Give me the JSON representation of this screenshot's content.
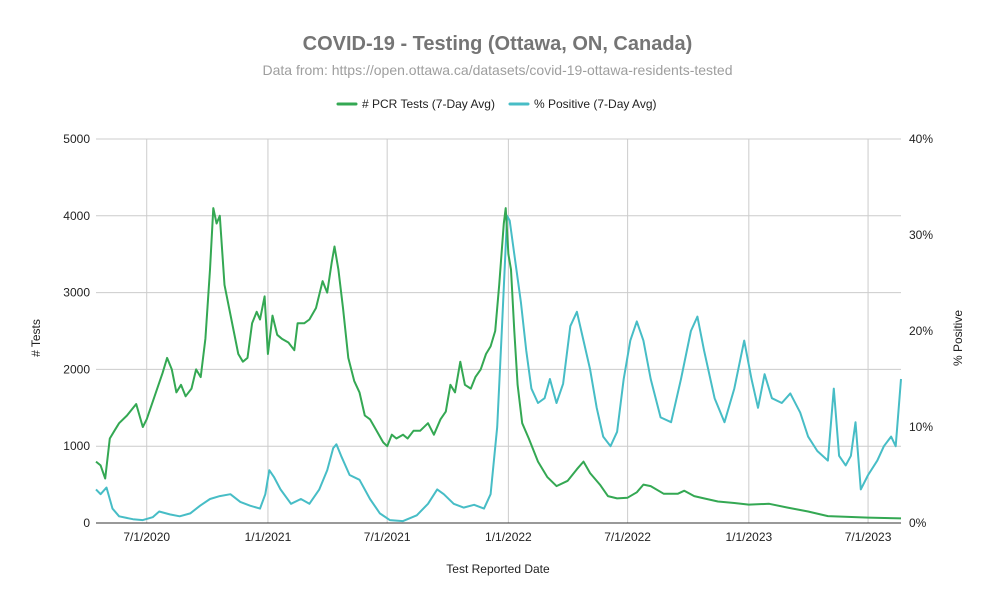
{
  "chart_data": {
    "type": "line",
    "title": "COVID-19 -  Testing (Ottawa, ON, Canada)",
    "subtitle": "Data from: https://open.ottawa.ca/datasets/covid-19-ottawa-residents-tested",
    "xlabel": "Test Reported Date",
    "ylabel_left": "# Tests",
    "ylabel_right": "% Positive",
    "x_ticks": [
      "7/1/2020",
      "1/1/2021",
      "7/1/2021",
      "1/1/2022",
      "7/1/2022",
      "1/1/2023",
      "7/1/2023"
    ],
    "xlim": [
      "2020-04-15",
      "2023-08-20"
    ],
    "left_axis": {
      "ticks": [
        "0",
        "1000",
        "2000",
        "3000",
        "4000",
        "5000"
      ],
      "ylim": [
        0,
        5000
      ]
    },
    "right_axis": {
      "ticks": [
        "0%",
        "10%",
        "20%",
        "30%",
        "40%"
      ],
      "ylim": [
        0,
        40
      ]
    },
    "grid": true,
    "legend_position": "top",
    "series": [
      {
        "name": "# PCR Tests (7-Day Avg)",
        "axis": "left",
        "color": "#34a853",
        "points": [
          [
            "2020-04-15",
            800
          ],
          [
            "2020-04-22",
            750
          ],
          [
            "2020-04-29",
            580
          ],
          [
            "2020-05-06",
            1100
          ],
          [
            "2020-05-13",
            1200
          ],
          [
            "2020-05-20",
            1300
          ],
          [
            "2020-06-01",
            1400
          ],
          [
            "2020-06-15",
            1550
          ],
          [
            "2020-06-25",
            1250
          ],
          [
            "2020-07-01",
            1350
          ],
          [
            "2020-07-15",
            1700
          ],
          [
            "2020-07-25",
            1950
          ],
          [
            "2020-08-01",
            2150
          ],
          [
            "2020-08-08",
            2000
          ],
          [
            "2020-08-15",
            1700
          ],
          [
            "2020-08-22",
            1800
          ],
          [
            "2020-08-29",
            1650
          ],
          [
            "2020-09-07",
            1750
          ],
          [
            "2020-09-14",
            2000
          ],
          [
            "2020-09-21",
            1900
          ],
          [
            "2020-09-28",
            2400
          ],
          [
            "2020-10-05",
            3300
          ],
          [
            "2020-10-10",
            4100
          ],
          [
            "2020-10-15",
            3900
          ],
          [
            "2020-10-20",
            4000
          ],
          [
            "2020-10-27",
            3100
          ],
          [
            "2020-11-03",
            2800
          ],
          [
            "2020-11-10",
            2500
          ],
          [
            "2020-11-17",
            2200
          ],
          [
            "2020-11-24",
            2100
          ],
          [
            "2020-12-01",
            2150
          ],
          [
            "2020-12-08",
            2600
          ],
          [
            "2020-12-15",
            2750
          ],
          [
            "2020-12-20",
            2650
          ],
          [
            "2020-12-27",
            2950
          ],
          [
            "2021-01-01",
            2200
          ],
          [
            "2021-01-08",
            2700
          ],
          [
            "2021-01-15",
            2450
          ],
          [
            "2021-01-22",
            2400
          ],
          [
            "2021-02-01",
            2350
          ],
          [
            "2021-02-10",
            2250
          ],
          [
            "2021-02-15",
            2600
          ],
          [
            "2021-02-25",
            2600
          ],
          [
            "2021-03-05",
            2650
          ],
          [
            "2021-03-15",
            2800
          ],
          [
            "2021-03-25",
            3150
          ],
          [
            "2021-04-01",
            3000
          ],
          [
            "2021-04-08",
            3400
          ],
          [
            "2021-04-12",
            3600
          ],
          [
            "2021-04-18",
            3300
          ],
          [
            "2021-04-25",
            2800
          ],
          [
            "2021-05-03",
            2150
          ],
          [
            "2021-05-12",
            1850
          ],
          [
            "2021-05-20",
            1700
          ],
          [
            "2021-05-28",
            1400
          ],
          [
            "2021-06-05",
            1350
          ],
          [
            "2021-06-15",
            1200
          ],
          [
            "2021-06-25",
            1050
          ],
          [
            "2021-07-01",
            1000
          ],
          [
            "2021-07-08",
            1150
          ],
          [
            "2021-07-15",
            1100
          ],
          [
            "2021-07-25",
            1150
          ],
          [
            "2021-08-01",
            1100
          ],
          [
            "2021-08-10",
            1200
          ],
          [
            "2021-08-20",
            1200
          ],
          [
            "2021-09-01",
            1300
          ],
          [
            "2021-09-10",
            1150
          ],
          [
            "2021-09-20",
            1350
          ],
          [
            "2021-09-28",
            1450
          ],
          [
            "2021-10-05",
            1800
          ],
          [
            "2021-10-12",
            1700
          ],
          [
            "2021-10-20",
            2100
          ],
          [
            "2021-10-27",
            1800
          ],
          [
            "2021-11-05",
            1750
          ],
          [
            "2021-11-12",
            1900
          ],
          [
            "2021-11-20",
            2000
          ],
          [
            "2021-11-28",
            2200
          ],
          [
            "2021-12-05",
            2300
          ],
          [
            "2021-12-12",
            2500
          ],
          [
            "2021-12-18",
            3100
          ],
          [
            "2021-12-25",
            3900
          ],
          [
            "2021-12-28",
            4100
          ],
          [
            "2022-01-01",
            3500
          ],
          [
            "2022-01-05",
            3300
          ],
          [
            "2022-01-10",
            2500
          ],
          [
            "2022-01-15",
            1800
          ],
          [
            "2022-01-22",
            1300
          ],
          [
            "2022-02-01",
            1100
          ],
          [
            "2022-02-15",
            800
          ],
          [
            "2022-03-01",
            600
          ],
          [
            "2022-03-15",
            480
          ],
          [
            "2022-04-01",
            550
          ],
          [
            "2022-04-15",
            700
          ],
          [
            "2022-04-25",
            800
          ],
          [
            "2022-05-05",
            650
          ],
          [
            "2022-05-20",
            500
          ],
          [
            "2022-06-01",
            350
          ],
          [
            "2022-06-15",
            320
          ],
          [
            "2022-07-01",
            330
          ],
          [
            "2022-07-15",
            400
          ],
          [
            "2022-07-25",
            500
          ],
          [
            "2022-08-05",
            480
          ],
          [
            "2022-08-25",
            380
          ],
          [
            "2022-09-15",
            380
          ],
          [
            "2022-09-25",
            420
          ],
          [
            "2022-10-10",
            350
          ],
          [
            "2022-10-25",
            320
          ],
          [
            "2022-11-15",
            280
          ],
          [
            "2022-12-10",
            260
          ],
          [
            "2023-01-01",
            240
          ],
          [
            "2023-02-01",
            250
          ],
          [
            "2023-03-01",
            200
          ],
          [
            "2023-04-01",
            150
          ],
          [
            "2023-05-01",
            90
          ],
          [
            "2023-06-01",
            80
          ],
          [
            "2023-07-01",
            70
          ],
          [
            "2023-08-20",
            60
          ]
        ]
      },
      {
        "name": "% Positive (7-Day Avg)",
        "axis": "right",
        "color": "#47bdc6",
        "points": [
          [
            "2020-04-15",
            3.5
          ],
          [
            "2020-04-22",
            3.0
          ],
          [
            "2020-05-01",
            3.7
          ],
          [
            "2020-05-10",
            1.5
          ],
          [
            "2020-05-20",
            0.7
          ],
          [
            "2020-06-10",
            0.4
          ],
          [
            "2020-06-25",
            0.3
          ],
          [
            "2020-07-10",
            0.6
          ],
          [
            "2020-07-20",
            1.2
          ],
          [
            "2020-08-05",
            0.9
          ],
          [
            "2020-08-20",
            0.7
          ],
          [
            "2020-09-05",
            1.0
          ],
          [
            "2020-09-20",
            1.8
          ],
          [
            "2020-10-05",
            2.5
          ],
          [
            "2020-10-20",
            2.8
          ],
          [
            "2020-11-05",
            3.0
          ],
          [
            "2020-11-20",
            2.2
          ],
          [
            "2020-12-05",
            1.8
          ],
          [
            "2020-12-20",
            1.5
          ],
          [
            "2020-12-28",
            3.0
          ],
          [
            "2021-01-03",
            5.5
          ],
          [
            "2021-01-10",
            4.8
          ],
          [
            "2021-01-20",
            3.5
          ],
          [
            "2021-02-05",
            2.0
          ],
          [
            "2021-02-20",
            2.5
          ],
          [
            "2021-03-05",
            2.0
          ],
          [
            "2021-03-20",
            3.5
          ],
          [
            "2021-04-01",
            5.5
          ],
          [
            "2021-04-10",
            7.8
          ],
          [
            "2021-04-15",
            8.2
          ],
          [
            "2021-04-22",
            7.0
          ],
          [
            "2021-05-05",
            5.0
          ],
          [
            "2021-05-20",
            4.5
          ],
          [
            "2021-06-05",
            2.5
          ],
          [
            "2021-06-20",
            1.0
          ],
          [
            "2021-07-05",
            0.3
          ],
          [
            "2021-07-25",
            0.2
          ],
          [
            "2021-08-15",
            0.8
          ],
          [
            "2021-09-01",
            2.0
          ],
          [
            "2021-09-15",
            3.5
          ],
          [
            "2021-09-25",
            3.0
          ],
          [
            "2021-10-10",
            2.0
          ],
          [
            "2021-10-25",
            1.6
          ],
          [
            "2021-11-10",
            1.9
          ],
          [
            "2021-11-25",
            1.5
          ],
          [
            "2021-12-05",
            3.0
          ],
          [
            "2021-12-15",
            10.0
          ],
          [
            "2021-12-22",
            20.0
          ],
          [
            "2021-12-30",
            32.0
          ],
          [
            "2022-01-03",
            31.5
          ],
          [
            "2022-01-10",
            28.0
          ],
          [
            "2022-01-20",
            23.0
          ],
          [
            "2022-01-28",
            18.0
          ],
          [
            "2022-02-05",
            14.0
          ],
          [
            "2022-02-15",
            12.5
          ],
          [
            "2022-02-25",
            13.0
          ],
          [
            "2022-03-05",
            15.0
          ],
          [
            "2022-03-15",
            12.5
          ],
          [
            "2022-03-25",
            14.5
          ],
          [
            "2022-04-05",
            20.5
          ],
          [
            "2022-04-15",
            22.0
          ],
          [
            "2022-04-25",
            19.0
          ],
          [
            "2022-05-05",
            16.0
          ],
          [
            "2022-05-15",
            12.0
          ],
          [
            "2022-05-25",
            9.0
          ],
          [
            "2022-06-05",
            8.0
          ],
          [
            "2022-06-15",
            9.5
          ],
          [
            "2022-06-25",
            15.0
          ],
          [
            "2022-07-05",
            19.0
          ],
          [
            "2022-07-15",
            21.0
          ],
          [
            "2022-07-25",
            19.0
          ],
          [
            "2022-08-05",
            15.0
          ],
          [
            "2022-08-20",
            11.0
          ],
          [
            "2022-09-05",
            10.5
          ],
          [
            "2022-09-20",
            15.0
          ],
          [
            "2022-10-05",
            20.0
          ],
          [
            "2022-10-15",
            21.5
          ],
          [
            "2022-10-25",
            18.0
          ],
          [
            "2022-11-10",
            13.0
          ],
          [
            "2022-11-25",
            10.5
          ],
          [
            "2022-12-10",
            14.0
          ],
          [
            "2022-12-25",
            19.0
          ],
          [
            "2023-01-05",
            15.0
          ],
          [
            "2023-01-15",
            12.0
          ],
          [
            "2023-01-25",
            15.5
          ],
          [
            "2023-02-05",
            13.0
          ],
          [
            "2023-02-20",
            12.5
          ],
          [
            "2023-03-05",
            13.5
          ],
          [
            "2023-03-20",
            11.5
          ],
          [
            "2023-04-01",
            9.0
          ],
          [
            "2023-04-15",
            7.5
          ],
          [
            "2023-05-01",
            6.5
          ],
          [
            "2023-05-10",
            14.0
          ],
          [
            "2023-05-18",
            7.0
          ],
          [
            "2023-05-28",
            6.0
          ],
          [
            "2023-06-05",
            7.0
          ],
          [
            "2023-06-12",
            10.5
          ],
          [
            "2023-06-20",
            3.5
          ],
          [
            "2023-07-01",
            5.0
          ],
          [
            "2023-07-15",
            6.5
          ],
          [
            "2023-07-25",
            8.0
          ],
          [
            "2023-08-05",
            9.0
          ],
          [
            "2023-08-12",
            8.0
          ],
          [
            "2023-08-20",
            15.0
          ]
        ]
      }
    ]
  }
}
